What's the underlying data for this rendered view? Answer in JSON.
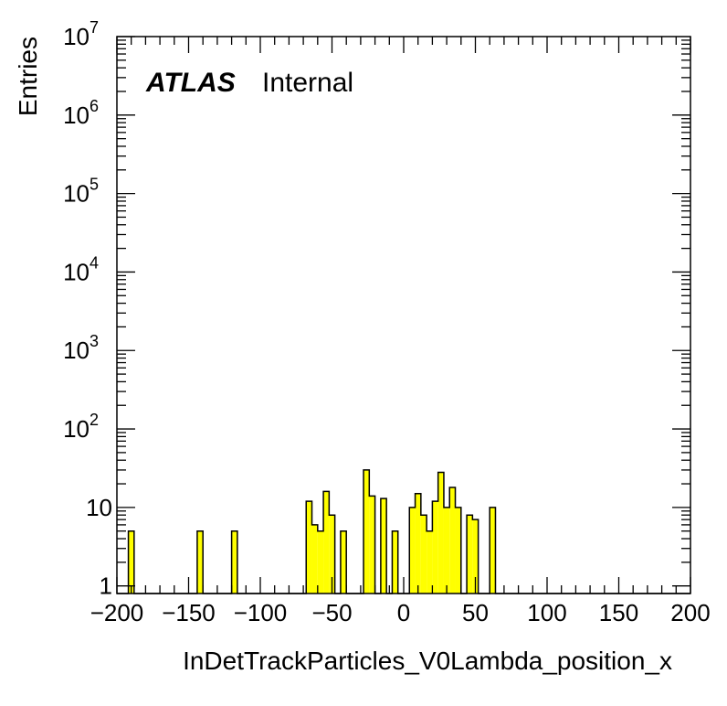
{
  "chart_data": {
    "type": "bar",
    "histogram": true,
    "xlabel": "InDetTrackParticles_V0Lambda_position_x",
    "ylabel": "Entries",
    "label_bold": "ATLAS",
    "label_normal": "Internal",
    "xlim": [
      -200,
      200
    ],
    "ylim": [
      0.8,
      10000000
    ],
    "yscale": "log",
    "x_ticks": [
      -200,
      -150,
      -100,
      -50,
      0,
      50,
      100,
      150,
      200
    ],
    "x_tick_labels": [
      "−200",
      "−150",
      "−100",
      "−50",
      "0",
      "50",
      "100",
      "150",
      "200"
    ],
    "y_ticks": [
      1,
      10,
      100,
      1000,
      10000,
      100000,
      1000000,
      10000000
    ],
    "y_tick_labels": [
      {
        "base": "1",
        "exp": ""
      },
      {
        "base": "10",
        "exp": ""
      },
      {
        "base": "10",
        "exp": "2"
      },
      {
        "base": "10",
        "exp": "3"
      },
      {
        "base": "10",
        "exp": "4"
      },
      {
        "base": "10",
        "exp": "5"
      },
      {
        "base": "10",
        "exp": "6"
      },
      {
        "base": "10",
        "exp": "7"
      }
    ],
    "bin_width": 4,
    "bin_start": -200,
    "values": [
      0,
      0,
      5,
      0,
      0,
      0,
      0,
      0,
      0,
      0,
      0,
      0,
      0,
      0,
      5,
      0,
      0,
      0,
      0,
      0,
      5,
      0,
      0,
      0,
      0,
      0,
      0,
      0,
      0,
      0,
      0,
      0,
      0,
      12,
      6,
      5,
      16,
      8,
      0,
      5,
      0,
      0,
      0,
      30,
      14,
      0,
      13,
      0,
      5,
      0,
      0,
      10,
      15,
      8,
      5,
      12,
      28,
      10,
      18,
      10,
      0,
      8,
      7,
      0,
      0,
      10,
      0,
      0,
      0,
      0,
      0,
      0,
      0,
      0,
      0,
      0,
      0,
      0,
      0,
      0,
      0,
      0,
      0,
      0,
      0,
      0,
      0,
      0,
      0,
      0,
      0,
      0,
      0,
      0,
      0,
      0,
      0,
      0,
      0,
      0
    ],
    "bar_color": "#ffff00",
    "line_color": "#000000"
  }
}
